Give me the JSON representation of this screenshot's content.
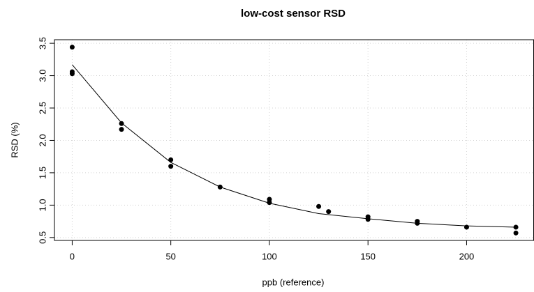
{
  "chart_data": {
    "type": "scatter",
    "title": "low-cost sensor RSD",
    "x_label": "ppb (reference)",
    "y_label": "RSD (%)",
    "xlim": [
      -9,
      234
    ],
    "xticks": [
      0,
      50,
      100,
      150,
      200
    ],
    "ylim": [
      0.455,
      3.555
    ],
    "yticks": [
      0.5,
      1.0,
      1.5,
      2.0,
      2.5,
      3.0,
      3.5
    ],
    "grid": true,
    "series": [
      {
        "type": "scatter",
        "color": "#000000",
        "x": [
          0,
          0,
          0,
          25,
          25,
          50,
          50,
          75,
          100,
          100,
          125,
          130,
          150,
          150,
          175,
          175,
          200,
          225,
          225
        ],
        "values": [
          3.44,
          3.06,
          3.03,
          2.26,
          2.17,
          1.7,
          1.6,
          1.28,
          1.09,
          1.04,
          0.98,
          0.9,
          0.82,
          0.78,
          0.75,
          0.72,
          0.66,
          0.66,
          0.57
        ]
      },
      {
        "type": "line",
        "color": "#000000",
        "x": [
          0,
          25,
          50,
          75,
          100,
          125,
          150,
          175,
          200,
          225
        ],
        "values": [
          3.17,
          2.27,
          1.66,
          1.28,
          1.03,
          0.87,
          0.79,
          0.72,
          0.68,
          0.66
        ]
      }
    ]
  }
}
